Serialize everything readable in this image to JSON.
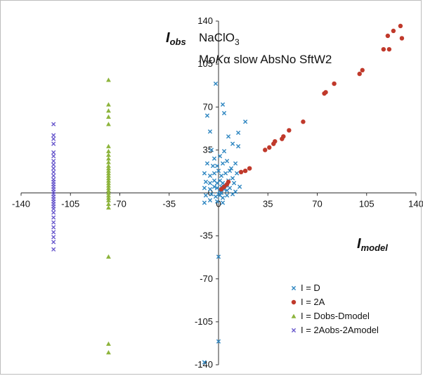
{
  "chart_data": {
    "type": "scatter",
    "title": "",
    "annotation": {
      "line1_main": "NaClO",
      "line1_sub": "3",
      "line2_part1": "Mo",
      "line2_italic": "K",
      "line2_alpha": "α",
      "line2_part2": " slow AbsNo SftW2"
    },
    "xlabel": {
      "main": "I",
      "sub": "model"
    },
    "ylabel": {
      "main": "I",
      "sub": "obs"
    },
    "xlim": [
      -140,
      140
    ],
    "ylim": [
      -140,
      140
    ],
    "x_ticks": [
      -140,
      -105,
      -70,
      -35,
      0,
      35,
      70,
      105,
      140
    ],
    "y_ticks": [
      140,
      105,
      70,
      35,
      0,
      -35,
      -70,
      -105,
      -140
    ],
    "legend_position": "bottom-right",
    "series": [
      {
        "name": "I = D",
        "marker": "x",
        "color": "#2E86C1",
        "points": [
          [
            -2,
            89
          ],
          [
            3,
            72
          ],
          [
            -8,
            63
          ],
          [
            4,
            65
          ],
          [
            -6,
            50
          ],
          [
            7,
            46
          ],
          [
            14,
            49
          ],
          [
            19,
            58
          ],
          [
            -5,
            35
          ],
          [
            1,
            30
          ],
          [
            -3,
            28
          ],
          [
            4,
            34
          ],
          [
            10,
            40
          ],
          [
            14,
            38
          ],
          [
            -8,
            24
          ],
          [
            -4,
            22
          ],
          [
            -1,
            22
          ],
          [
            3,
            24
          ],
          [
            6,
            26
          ],
          [
            9,
            20
          ],
          [
            12,
            24
          ],
          [
            -10,
            16
          ],
          [
            -6,
            14
          ],
          [
            -3,
            16
          ],
          [
            0,
            18
          ],
          [
            2,
            14
          ],
          [
            5,
            16
          ],
          [
            8,
            18
          ],
          [
            10,
            12
          ],
          [
            13,
            16
          ],
          [
            -9,
            9
          ],
          [
            -6,
            8
          ],
          [
            -3,
            10
          ],
          [
            -1,
            8
          ],
          [
            1,
            10
          ],
          [
            3,
            8
          ],
          [
            5,
            6
          ],
          [
            7,
            10
          ],
          [
            11,
            8
          ],
          [
            -10,
            4
          ],
          [
            -6,
            3
          ],
          [
            -3,
            5
          ],
          [
            -1,
            4
          ],
          [
            1,
            2
          ],
          [
            2,
            5
          ],
          [
            4,
            3
          ],
          [
            6,
            2
          ],
          [
            8,
            4
          ],
          [
            12,
            1
          ],
          [
            15,
            5
          ],
          [
            -9,
            -2
          ],
          [
            -5,
            -1
          ],
          [
            -2,
            -3
          ],
          [
            0,
            -1
          ],
          [
            1,
            -2
          ],
          [
            2,
            0
          ],
          [
            3,
            -4
          ],
          [
            6,
            -2
          ],
          [
            10,
            -1
          ],
          [
            -10,
            -8
          ],
          [
            -6,
            -6
          ],
          [
            -1,
            -7
          ],
          [
            3,
            -8
          ],
          [
            0,
            -52
          ],
          [
            0,
            -121
          ],
          [
            -10,
            -138
          ]
        ]
      },
      {
        "name": "I = 2A",
        "marker": "circle",
        "color": "#C0392B",
        "points": [
          [
            2,
            3
          ],
          [
            4,
            5
          ],
          [
            6,
            7
          ],
          [
            7,
            9
          ],
          [
            16,
            17
          ],
          [
            19,
            18
          ],
          [
            22,
            20
          ],
          [
            33,
            35
          ],
          [
            36,
            37
          ],
          [
            39,
            40
          ],
          [
            40,
            42
          ],
          [
            45,
            44
          ],
          [
            46,
            46
          ],
          [
            50,
            51
          ],
          [
            60,
            58
          ],
          [
            75,
            81
          ],
          [
            76,
            82
          ],
          [
            82,
            89
          ],
          [
            100,
            97
          ],
          [
            102,
            100
          ],
          [
            117,
            117
          ],
          [
            121,
            117
          ],
          [
            120,
            128
          ],
          [
            124,
            132
          ],
          [
            129,
            136
          ],
          [
            130,
            126
          ]
        ]
      },
      {
        "name": "I = Dobs-Dmodel",
        "marker": "triangle",
        "color": "#8DB43C",
        "points": [
          [
            -78,
            92
          ],
          [
            -78,
            72
          ],
          [
            -78,
            67
          ],
          [
            -78,
            62
          ],
          [
            -78,
            56
          ],
          [
            -78,
            38
          ],
          [
            -78,
            34
          ],
          [
            -78,
            31
          ],
          [
            -78,
            28
          ],
          [
            -78,
            25
          ],
          [
            -78,
            22
          ],
          [
            -78,
            20
          ],
          [
            -78,
            18
          ],
          [
            -78,
            16
          ],
          [
            -78,
            14
          ],
          [
            -78,
            12
          ],
          [
            -78,
            10
          ],
          [
            -78,
            8
          ],
          [
            -78,
            6
          ],
          [
            -78,
            4
          ],
          [
            -78,
            2
          ],
          [
            -78,
            0
          ],
          [
            -78,
            -2
          ],
          [
            -78,
            -4
          ],
          [
            -78,
            -6
          ],
          [
            -78,
            -9
          ],
          [
            -78,
            -12
          ],
          [
            -78,
            -52
          ],
          [
            -78,
            -123
          ],
          [
            -78,
            -130
          ]
        ]
      },
      {
        "name": "I = 2Aobs-2Amodel",
        "marker": "x",
        "color": "#6A5ACD",
        "points": [
          [
            -117,
            56
          ],
          [
            -117,
            47
          ],
          [
            -117,
            44
          ],
          [
            -117,
            40
          ],
          [
            -117,
            33
          ],
          [
            -117,
            30
          ],
          [
            -117,
            26
          ],
          [
            -117,
            23
          ],
          [
            -117,
            20
          ],
          [
            -117,
            17
          ],
          [
            -117,
            14
          ],
          [
            -117,
            11
          ],
          [
            -117,
            9
          ],
          [
            -117,
            7
          ],
          [
            -117,
            5
          ],
          [
            -117,
            3
          ],
          [
            -117,
            1
          ],
          [
            -117,
            -1
          ],
          [
            -117,
            -3
          ],
          [
            -117,
            -5
          ],
          [
            -117,
            -7
          ],
          [
            -117,
            -9
          ],
          [
            -117,
            -11
          ],
          [
            -117,
            -13
          ],
          [
            -117,
            -16
          ],
          [
            -117,
            -20
          ],
          [
            -117,
            -24
          ],
          [
            -117,
            -28
          ],
          [
            -117,
            -32
          ],
          [
            -117,
            -36
          ],
          [
            -117,
            -40
          ],
          [
            -117,
            -46
          ]
        ]
      }
    ]
  }
}
